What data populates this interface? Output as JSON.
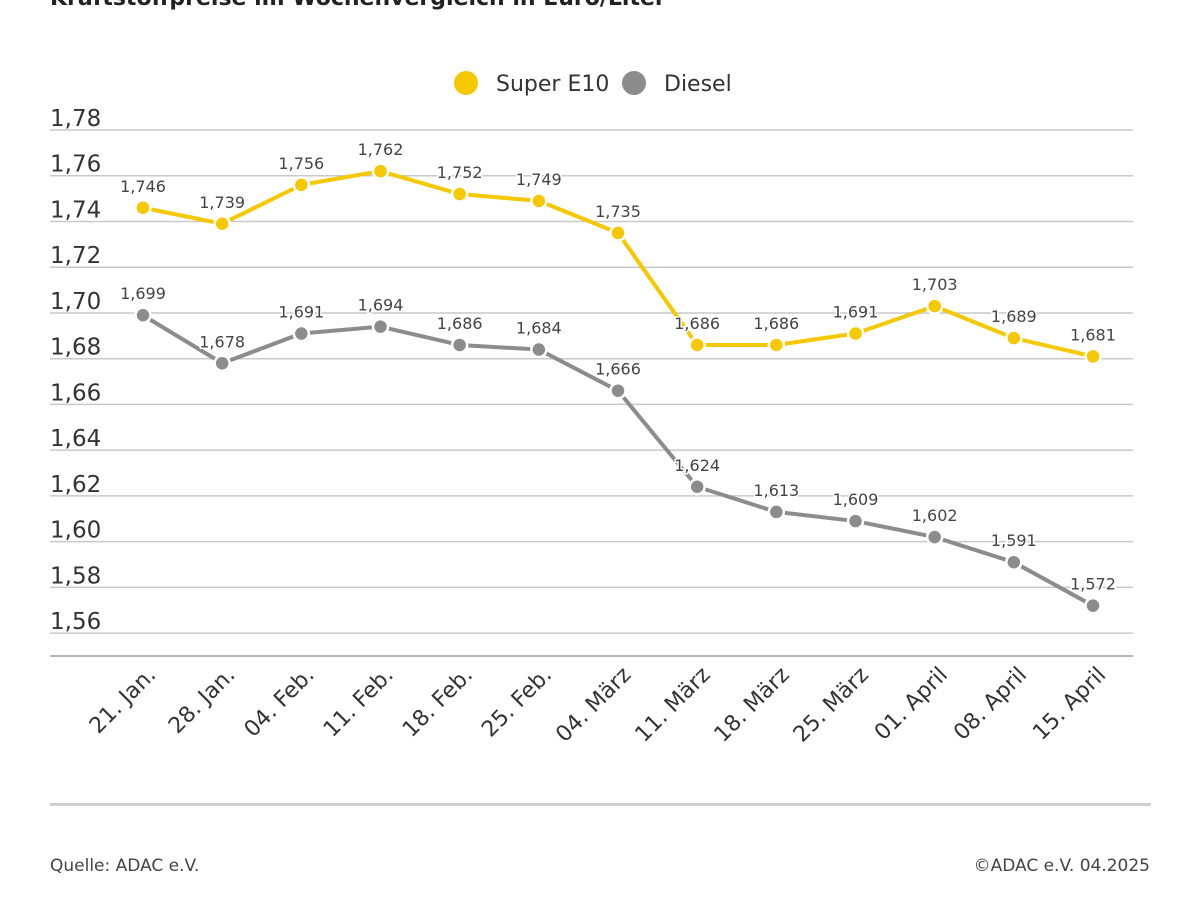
{
  "header": {
    "title": "Kraftstoffpreise im Wochenvergleich in Euro/Liter"
  },
  "footer": {
    "source": "Quelle: ADAC e.V.",
    "copyright": "©ADAC e.V. 04.2025"
  },
  "chart_data": {
    "type": "line",
    "title": "Kraftstoffpreise im Wochenvergleich in Euro/Liter",
    "xlabel": "",
    "ylabel": "",
    "categories": [
      "21. Jan.",
      "28. Jan.",
      "04. Feb.",
      "11. Feb.",
      "18. Feb.",
      "25. Feb.",
      "04. März",
      "11. März",
      "18. März",
      "25. März",
      "01. April",
      "08. April",
      "15. April"
    ],
    "series": [
      {
        "name": "Super E10",
        "color": "#f5c800",
        "values": [
          1.746,
          1.739,
          1.756,
          1.762,
          1.752,
          1.749,
          1.735,
          1.686,
          1.686,
          1.691,
          1.703,
          1.689,
          1.681
        ],
        "labels": [
          "1,746",
          "1,739",
          "1,756",
          "1,762",
          "1,752",
          "1,749",
          "1,735",
          "1,686",
          "1,686",
          "1,691",
          "1,703",
          "1,689",
          "1,681"
        ]
      },
      {
        "name": "Diesel",
        "color": "#8c8c8c",
        "values": [
          1.699,
          1.678,
          1.691,
          1.694,
          1.686,
          1.684,
          1.666,
          1.624,
          1.613,
          1.609,
          1.602,
          1.591,
          1.572
        ],
        "labels": [
          "1,699",
          "1,678",
          "1,691",
          "1,694",
          "1,686",
          "1,684",
          "1,666",
          "1,624",
          "1,613",
          "1,609",
          "1,602",
          "1,591",
          "1,572"
        ]
      }
    ],
    "yticks": [
      1.56,
      1.58,
      1.6,
      1.62,
      1.64,
      1.66,
      1.68,
      1.7,
      1.72,
      1.74,
      1.76,
      1.78
    ],
    "ytick_labels": [
      "1,56",
      "1,58",
      "1,60",
      "1,62",
      "1,64",
      "1,66",
      "1,68",
      "1,70",
      "1,72",
      "1,74",
      "1,76",
      "1,78"
    ],
    "ylim": [
      1.55,
      1.78
    ],
    "grid": true,
    "legend": "top-center"
  }
}
